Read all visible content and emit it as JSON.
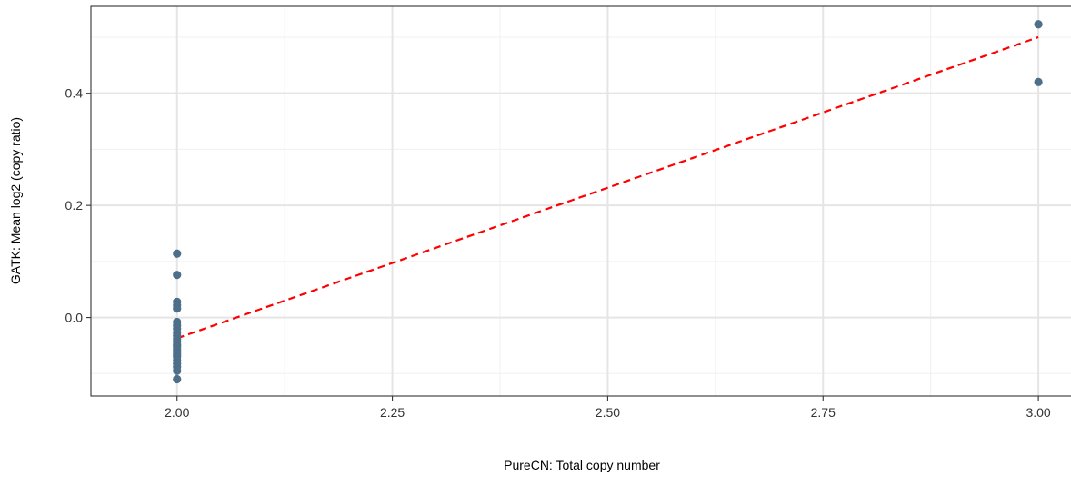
{
  "chart_data": {
    "type": "scatter",
    "title": "",
    "xlabel": "PureCN: Total copy number",
    "ylabel": "GATK: Mean log2 (copy ratio)",
    "xlim": [
      1.9,
      3.04
    ],
    "ylim": [
      -0.14,
      0.555
    ],
    "x_ticks": [
      2.0,
      2.25,
      2.5,
      2.75,
      3.0
    ],
    "x_tick_labels": [
      "2.00",
      "2.25",
      "2.50",
      "2.75",
      "3.00"
    ],
    "y_ticks": [
      0.0,
      0.2,
      0.4
    ],
    "y_tick_labels": [
      "0.0",
      "0.2",
      "0.4"
    ],
    "grid": true,
    "legend": "none",
    "point_color": "#4d6f8a",
    "fit_line_color": "#ff0000",
    "points": {
      "x": [
        2,
        2,
        2,
        2,
        2,
        2,
        2,
        2,
        2,
        2,
        2,
        2,
        2,
        2,
        2,
        2,
        2,
        2,
        2,
        2,
        2,
        2,
        2,
        3,
        3
      ],
      "y": [
        0.114,
        0.076,
        0.028,
        0.022,
        0.016,
        -0.008,
        -0.014,
        -0.02,
        -0.027,
        -0.032,
        -0.038,
        -0.043,
        -0.048,
        -0.052,
        -0.057,
        -0.062,
        -0.066,
        -0.07,
        -0.076,
        -0.082,
        -0.088,
        -0.095,
        -0.11,
        0.523,
        0.42
      ]
    },
    "fit_line": {
      "x": [
        2.0,
        3.0
      ],
      "y": [
        -0.037,
        0.5
      ]
    }
  }
}
